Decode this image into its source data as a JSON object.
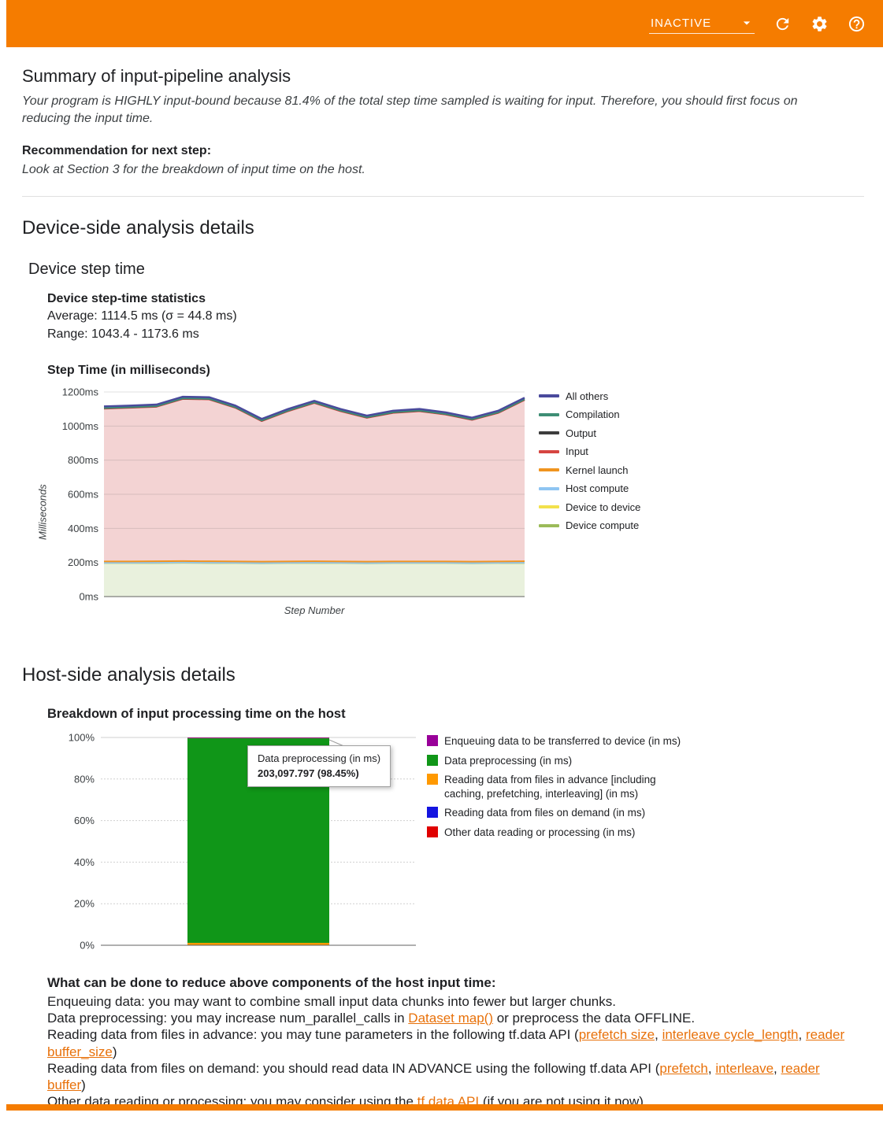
{
  "header": {
    "status": "INACTIVE"
  },
  "summary": {
    "title": "Summary of input-pipeline analysis",
    "body": "Your program is HIGHLY input-bound because 81.4% of the total step time sampled is waiting for input. Therefore, you should first focus on reducing the input time.",
    "recommendation_label": "Recommendation for next step:",
    "recommendation": "Look at Section 3 for the breakdown of input time on the host."
  },
  "device": {
    "section_title": "Device-side analysis details",
    "subsection_title": "Device step time",
    "stats_title": "Device step-time statistics",
    "average": "Average: 1114.5 ms (σ = 44.8 ms)",
    "range": "Range: 1043.4 - 1173.6 ms"
  },
  "host": {
    "section_title": "Host-side analysis details"
  },
  "advice": {
    "title": "What can be done to reduce above components of the host input time:",
    "lines": [
      [
        {
          "t": "Enqueuing data: you may want to combine small input data chunks into fewer but larger chunks."
        }
      ],
      [
        {
          "t": "Data preprocessing: you may increase num_parallel_calls in "
        },
        {
          "t": "Dataset map()",
          "link": true
        },
        {
          "t": " or preprocess the data OFFLINE."
        }
      ],
      [
        {
          "t": "Reading data from files in advance: you may tune parameters in the following tf.data API ("
        },
        {
          "t": "prefetch size",
          "link": true
        },
        {
          "t": ", "
        },
        {
          "t": "interleave cycle_length",
          "link": true
        },
        {
          "t": ", "
        },
        {
          "t": "reader buffer_size",
          "link": true
        },
        {
          "t": ")"
        }
      ],
      [
        {
          "t": "Reading data from files on demand: you should read data IN ADVANCE using the following tf.data API ("
        },
        {
          "t": "prefetch",
          "link": true
        },
        {
          "t": ", "
        },
        {
          "t": "interleave",
          "link": true
        },
        {
          "t": ", "
        },
        {
          "t": "reader buffer",
          "link": true
        },
        {
          "t": ")"
        }
      ],
      [
        {
          "t": "Other data reading or processing: you may consider using the "
        },
        {
          "t": "tf.data API",
          "link": true
        },
        {
          "t": " (if you are not using it now)"
        }
      ]
    ]
  },
  "chart_data": [
    {
      "type": "area",
      "title": "Step Time (in milliseconds)",
      "xlabel": "Step Number",
      "ylabel": "Milliseconds",
      "ylim": [
        0,
        1200
      ],
      "ytick_step": 200,
      "ytick_suffix": "ms",
      "grid": true,
      "legend_position": "right",
      "x": [
        0,
        1,
        2,
        3,
        4,
        5,
        6,
        7,
        8,
        9,
        10,
        11,
        12,
        13,
        14,
        15,
        16
      ],
      "series": [
        {
          "name": "Device compute",
          "color": "#9bbb59",
          "fill": "#e9f1dd",
          "values": [
            196,
            196,
            197,
            198,
            197,
            196,
            195,
            196,
            197,
            196,
            195,
            196,
            196,
            196,
            195,
            196,
            197
          ]
        },
        {
          "name": "Device to device",
          "color": "#f2e14c",
          "fill": "#fbf7cf",
          "values": [
            1,
            1,
            1,
            1,
            1,
            1,
            1,
            1,
            1,
            1,
            1,
            1,
            1,
            1,
            1,
            1,
            1
          ]
        },
        {
          "name": "Host compute",
          "color": "#8fc5f2",
          "fill": "#ddeefb",
          "values": [
            1,
            1,
            1,
            1,
            1,
            1,
            1,
            1,
            1,
            1,
            1,
            1,
            1,
            1,
            1,
            1,
            1
          ]
        },
        {
          "name": "Kernel launch",
          "color": "#f0941f",
          "fill": "#fbe3c0",
          "values": [
            8,
            8,
            8,
            8,
            8,
            8,
            8,
            8,
            8,
            8,
            8,
            8,
            8,
            8,
            8,
            8,
            8
          ]
        },
        {
          "name": "Input",
          "color": "#d64541",
          "fill": "#f3d3d3",
          "values": [
            896,
            901,
            906,
            951,
            949,
            901,
            824,
            881,
            928,
            881,
            843,
            871,
            881,
            861,
            831,
            871,
            946
          ]
        },
        {
          "name": "Output",
          "color": "#3d3d3d",
          "fill": "#dcdcdc",
          "values": [
            3,
            3,
            3,
            3,
            3,
            3,
            3,
            3,
            3,
            3,
            3,
            3,
            3,
            3,
            3,
            3,
            3
          ]
        },
        {
          "name": "Compilation",
          "color": "#3e8e75",
          "fill": "#d5e8e2",
          "values": [
            1,
            1,
            1,
            1,
            1,
            1,
            1,
            1,
            1,
            1,
            1,
            1,
            1,
            1,
            1,
            1,
            1
          ]
        },
        {
          "name": "All others",
          "color": "#4a4a9c",
          "fill": "#d9d4ec",
          "lw": 2.5,
          "values": [
            9,
            9,
            9,
            9,
            9,
            9,
            9,
            9,
            9,
            9,
            9,
            9,
            9,
            9,
            9,
            9,
            9
          ]
        }
      ]
    },
    {
      "type": "bar",
      "stacked": true,
      "title": "Breakdown of input processing time on the host",
      "xlabel": "",
      "ylabel": "",
      "ylim": [
        0,
        100
      ],
      "ytick_step": 20,
      "ytick_suffix": "%",
      "legend_position": "right",
      "categories": [
        ""
      ],
      "stack_order": [
        2,
        1,
        0,
        3,
        4
      ],
      "series": [
        {
          "name": "Enqueuing data to be transferred to device (in ms)",
          "color": "#990099",
          "values": [
            0.2
          ]
        },
        {
          "name": "Data preprocessing (in ms)",
          "color": "#109618",
          "values": [
            98.45
          ]
        },
        {
          "name": "Reading data from files in advance [including caching, prefetching, interleaving] (in ms)",
          "color": "#ff9900",
          "values": [
            1.15
          ]
        },
        {
          "name": "Reading data from files on demand (in ms)",
          "color": "#1414e0",
          "values": [
            0.1
          ]
        },
        {
          "name": "Other data reading or processing (in ms)",
          "color": "#e00000",
          "values": [
            0.1
          ]
        }
      ],
      "tooltip": {
        "title": "Data preprocessing (in ms)",
        "value": "203,097.797 (98.45%)"
      }
    }
  ]
}
